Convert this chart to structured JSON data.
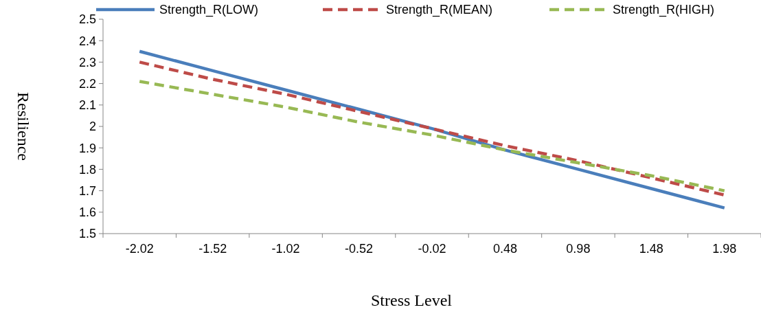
{
  "chart_data": {
    "type": "line",
    "xlabel": "Stress Level",
    "ylabel": "Resilience",
    "categories": [
      "-2.02",
      "-1.52",
      "-1.02",
      "-0.52",
      "-0.02",
      "0.48",
      "0.98",
      "1.48",
      "1.98"
    ],
    "ylim": [
      1.5,
      2.5
    ],
    "yticks": [
      1.5,
      1.6,
      1.7,
      1.8,
      1.9,
      2,
      2.1,
      2.2,
      2.3,
      2.4,
      2.5
    ],
    "legend": "top",
    "grid": false,
    "marker": "none",
    "series": [
      {
        "name": "Strength_R(LOW)",
        "color": "#4a7ebb",
        "line_style": "solid",
        "values": [
          2.35,
          2.26,
          2.17,
          2.08,
          1.99,
          1.89,
          1.8,
          1.71,
          1.62
        ]
      },
      {
        "name": "Strength_R(MEAN)",
        "color": "#be4b48",
        "line_style": "dashed",
        "values": [
          2.3,
          2.22,
          2.15,
          2.07,
          1.99,
          1.91,
          1.84,
          1.76,
          1.68
        ]
      },
      {
        "name": "Strength_R(HIGH)",
        "color": "#98b954",
        "line_style": "dashed",
        "values": [
          2.21,
          2.15,
          2.09,
          2.02,
          1.96,
          1.89,
          1.83,
          1.77,
          1.7
        ]
      }
    ]
  }
}
